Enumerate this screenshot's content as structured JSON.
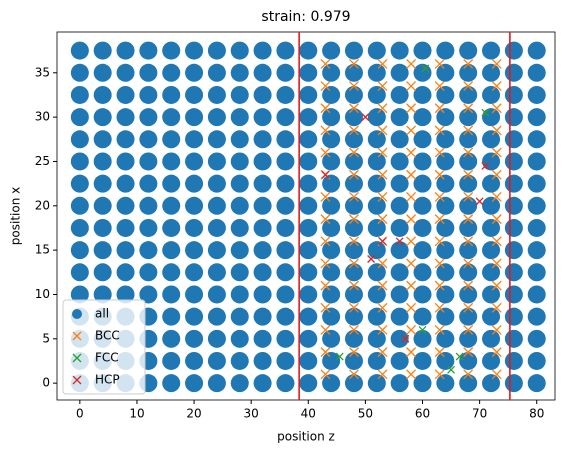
{
  "chart_data": {
    "type": "scatter",
    "title": "strain: 0.979",
    "xlabel": "position z",
    "ylabel": "position x",
    "xlim": [
      -4,
      83.2
    ],
    "ylim": [
      -1.9,
      39.6
    ],
    "xticks": [
      0,
      10,
      20,
      30,
      40,
      50,
      60,
      70,
      80
    ],
    "yticks": [
      0,
      5,
      10,
      15,
      20,
      25,
      30,
      35
    ],
    "legend": "lower left",
    "vlines": [
      38.4,
      75.3
    ],
    "vline_color": "#e41a1c",
    "series": [
      {
        "name": "all",
        "color": "#1f77b4",
        "marker": "o",
        "x": [
          0,
          4,
          8,
          12,
          16,
          20,
          24,
          28,
          32,
          36,
          40,
          44,
          48,
          52,
          56,
          60,
          64,
          68,
          72,
          76,
          80,
          0,
          4,
          8,
          12,
          16,
          20,
          24,
          28,
          32,
          36,
          40,
          44,
          48,
          52,
          56,
          60,
          64,
          68,
          72,
          76,
          80,
          0,
          4,
          8,
          12,
          16,
          20,
          24,
          28,
          32,
          36,
          40,
          44,
          48,
          52,
          56,
          60,
          64,
          68,
          72,
          76,
          80,
          0,
          4,
          8,
          12,
          16,
          20,
          24,
          28,
          32,
          36,
          40,
          44,
          48,
          52,
          56,
          60,
          64,
          68,
          72,
          76,
          80,
          0,
          4,
          8,
          12,
          16,
          20,
          24,
          28,
          32,
          36,
          40,
          44,
          48,
          52,
          56,
          60,
          64,
          68,
          72,
          76,
          80,
          0,
          4,
          8,
          12,
          16,
          20,
          24,
          28,
          32,
          36,
          40,
          44,
          48,
          52,
          56,
          60,
          64,
          68,
          72,
          76,
          80,
          0,
          4,
          8,
          12,
          16,
          20,
          24,
          28,
          32,
          36,
          40,
          44,
          48,
          52,
          56,
          60,
          64,
          68,
          72,
          76,
          80,
          0,
          4,
          8,
          12,
          16,
          20,
          24,
          28,
          32,
          36,
          40,
          44,
          48,
          52,
          56,
          60,
          64,
          68,
          72,
          76,
          80,
          0,
          4,
          8,
          12,
          16,
          20,
          24,
          28,
          32,
          36,
          40,
          44,
          48,
          52,
          56,
          60,
          64,
          68,
          72,
          76,
          80,
          0,
          4,
          8,
          12,
          16,
          20,
          24,
          28,
          32,
          36,
          40,
          44,
          48,
          52,
          56,
          60,
          64,
          68,
          72,
          76,
          80,
          0,
          4,
          8,
          12,
          16,
          20,
          24,
          28,
          32,
          36,
          40,
          44,
          48,
          52,
          56,
          60,
          64,
          68,
          72,
          76,
          80,
          0,
          4,
          8,
          12,
          16,
          20,
          24,
          28,
          32,
          36,
          40,
          44,
          48,
          52,
          56,
          60,
          64,
          68,
          72,
          76,
          80,
          0,
          4,
          8,
          12,
          16,
          20,
          24,
          28,
          32,
          36,
          40,
          44,
          48,
          52,
          56,
          60,
          64,
          68,
          72,
          76,
          80,
          0,
          4,
          8,
          12,
          16,
          20,
          24,
          28,
          32,
          36,
          40,
          44,
          48,
          52,
          56,
          60,
          64,
          68,
          72,
          76,
          80,
          0,
          4,
          8,
          12,
          16,
          20,
          24,
          28,
          32,
          36,
          40,
          44,
          48,
          52,
          56,
          60,
          64,
          68,
          72,
          76,
          80,
          0,
          4,
          8,
          12,
          16,
          20,
          24,
          28,
          32,
          36,
          40,
          44,
          48,
          52,
          56,
          60,
          64,
          68,
          72,
          76,
          80
        ],
        "y": [
          0,
          0,
          0,
          0,
          0,
          0,
          0,
          0,
          0,
          0,
          0,
          0,
          0,
          0,
          0,
          0,
          0,
          0,
          0,
          0,
          0,
          2.5,
          2.5,
          2.5,
          2.5,
          2.5,
          2.5,
          2.5,
          2.5,
          2.5,
          2.5,
          2.5,
          2.5,
          2.5,
          2.5,
          2.5,
          2.5,
          2.5,
          2.5,
          2.5,
          2.5,
          2.5,
          5,
          5,
          5,
          5,
          5,
          5,
          5,
          5,
          5,
          5,
          5,
          5,
          5,
          5,
          5,
          5,
          5,
          5,
          5,
          5,
          5,
          7.5,
          7.5,
          7.5,
          7.5,
          7.5,
          7.5,
          7.5,
          7.5,
          7.5,
          7.5,
          7.5,
          7.5,
          7.5,
          7.5,
          7.5,
          7.5,
          7.5,
          7.5,
          7.5,
          7.5,
          7.5,
          10,
          10,
          10,
          10,
          10,
          10,
          10,
          10,
          10,
          10,
          10,
          10,
          10,
          10,
          10,
          10,
          10,
          10,
          10,
          10,
          10,
          12.5,
          12.5,
          12.5,
          12.5,
          12.5,
          12.5,
          12.5,
          12.5,
          12.5,
          12.5,
          12.5,
          12.5,
          12.5,
          12.5,
          12.5,
          12.5,
          12.5,
          12.5,
          12.5,
          12.5,
          12.5,
          15,
          15,
          15,
          15,
          15,
          15,
          15,
          15,
          15,
          15,
          15,
          15,
          15,
          15,
          15,
          15,
          15,
          15,
          15,
          15,
          15,
          17.5,
          17.5,
          17.5,
          17.5,
          17.5,
          17.5,
          17.5,
          17.5,
          17.5,
          17.5,
          17.5,
          17.5,
          17.5,
          17.5,
          17.5,
          17.5,
          17.5,
          17.5,
          17.5,
          17.5,
          17.5,
          20,
          20,
          20,
          20,
          20,
          20,
          20,
          20,
          20,
          20,
          20,
          20,
          20,
          20,
          20,
          20,
          20,
          20,
          20,
          20,
          20,
          22.5,
          22.5,
          22.5,
          22.5,
          22.5,
          22.5,
          22.5,
          22.5,
          22.5,
          22.5,
          22.5,
          22.5,
          22.5,
          22.5,
          22.5,
          22.5,
          22.5,
          22.5,
          22.5,
          22.5,
          22.5,
          25,
          25,
          25,
          25,
          25,
          25,
          25,
          25,
          25,
          25,
          25,
          25,
          25,
          25,
          25,
          25,
          25,
          25,
          25,
          25,
          25,
          27.5,
          27.5,
          27.5,
          27.5,
          27.5,
          27.5,
          27.5,
          27.5,
          27.5,
          27.5,
          27.5,
          27.5,
          27.5,
          27.5,
          27.5,
          27.5,
          27.5,
          27.5,
          27.5,
          27.5,
          27.5,
          30,
          30,
          30,
          30,
          30,
          30,
          30,
          30,
          30,
          30,
          30,
          30,
          30,
          30,
          30,
          30,
          30,
          30,
          30,
          30,
          30,
          32.5,
          32.5,
          32.5,
          32.5,
          32.5,
          32.5,
          32.5,
          32.5,
          32.5,
          32.5,
          32.5,
          32.5,
          32.5,
          32.5,
          32.5,
          32.5,
          32.5,
          32.5,
          32.5,
          32.5,
          32.5,
          35,
          35,
          35,
          35,
          35,
          35,
          35,
          35,
          35,
          35,
          35,
          35,
          35,
          35,
          35,
          35,
          35,
          35,
          35,
          35,
          35,
          37.5,
          37.5,
          37.5,
          37.5,
          37.5,
          37.5,
          37.5,
          37.5,
          37.5,
          37.5,
          37.5,
          37.5,
          37.5,
          37.5,
          37.5,
          37.5,
          37.5,
          37.5,
          37.5,
          37.5,
          37.5
        ]
      },
      {
        "name": "BCC",
        "color": "#ff7f0e",
        "marker": "x",
        "x": [
          43,
          48,
          53,
          58,
          63,
          68,
          73,
          43,
          48,
          53,
          58,
          63,
          68,
          73,
          43,
          48,
          53,
          58,
          63,
          68,
          73,
          43,
          48,
          53,
          58,
          63,
          68,
          73,
          43,
          48,
          53,
          58,
          63,
          68,
          73,
          43,
          48,
          53,
          58,
          63,
          68,
          73,
          43,
          48,
          53,
          58,
          63,
          68,
          73,
          43,
          48,
          53,
          58,
          63,
          68,
          73,
          43,
          48,
          53,
          58,
          63,
          68,
          73,
          43,
          48,
          53,
          58,
          63,
          68,
          73,
          43,
          48,
          53,
          58,
          63,
          68,
          73,
          43,
          48,
          53,
          58,
          63,
          68,
          73,
          43,
          48,
          53,
          58,
          63,
          68,
          73,
          43,
          48,
          53,
          58,
          63,
          68,
          73,
          43,
          48,
          53,
          58,
          63,
          68,
          73
        ],
        "y": [
          1,
          1,
          1,
          1,
          1,
          1,
          1,
          3.5,
          3.5,
          3.5,
          3.5,
          3.5,
          3.5,
          3.5,
          6,
          6,
          6,
          6,
          6,
          6,
          6,
          8.5,
          8.5,
          8.5,
          8.5,
          8.5,
          8.5,
          8.5,
          11,
          11,
          11,
          11,
          11,
          11,
          11,
          13.5,
          13.5,
          13.5,
          13.5,
          13.5,
          13.5,
          13.5,
          16,
          16,
          16,
          16,
          16,
          16,
          16,
          18.5,
          18.5,
          18.5,
          18.5,
          18.5,
          18.5,
          18.5,
          21,
          21,
          21,
          21,
          21,
          21,
          21,
          23.5,
          23.5,
          23.5,
          23.5,
          23.5,
          23.5,
          23.5,
          26,
          26,
          26,
          26,
          26,
          26,
          26,
          28.5,
          28.5,
          28.5,
          28.5,
          28.5,
          28.5,
          28.5,
          31,
          31,
          31,
          31,
          31,
          31,
          31,
          33.5,
          33.5,
          33.5,
          33.5,
          33.5,
          33.5,
          33.5,
          36,
          36,
          36,
          36,
          36,
          36,
          36
        ]
      },
      {
        "name": "FCC",
        "color": "#2ca02c",
        "marker": "x",
        "x": [
          60.5,
          71,
          60,
          45.5,
          65,
          66.5
        ],
        "y": [
          35.5,
          30.5,
          6,
          3,
          1.5,
          3
        ]
      },
      {
        "name": "HCP",
        "color": "#d62728",
        "marker": "x",
        "x": [
          43,
          53,
          56,
          70,
          51,
          71,
          57,
          50
        ],
        "y": [
          23.5,
          16,
          16,
          20.5,
          14,
          24.5,
          5,
          30
        ]
      }
    ]
  }
}
